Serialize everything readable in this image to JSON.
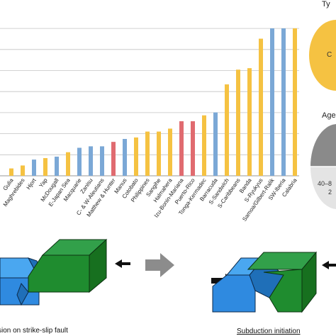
{
  "chart_data": {
    "type": "bar",
    "categories": [
      "Calabria",
      "SW-Iberia",
      "Samoa/Gilbert-Ralik",
      "S-Ryukyus",
      "Banda",
      "S-Caribbeans",
      "S-Sandwich",
      "Barracuda",
      "Tonga-Kermadec",
      "Puerto-Rico",
      "Izu-Bonin-Mariana",
      "Halmahera",
      "Sangihe",
      "Philippines",
      "Cotobato",
      "Manus",
      "Matthew & Hunter",
      "C- & W-Aleutians",
      "Zanisu",
      "Macquarie",
      "E-Japan Sea",
      "McDougall",
      "Yap",
      "Hjort",
      "Maghrebides",
      "Gulia"
    ],
    "values": [
      100,
      100,
      100,
      93,
      73,
      72,
      62,
      43,
      41,
      37,
      37,
      32,
      30,
      30,
      26,
      25,
      23,
      20,
      20,
      19,
      16,
      13,
      12,
      11,
      7,
      5
    ],
    "colors": [
      "#f5c242",
      "#7ba8d6",
      "#7ba8d6",
      "#f5c242",
      "#f5c242",
      "#f5c242",
      "#f5c242",
      "#7ba8d6",
      "#f5c242",
      "#e06b70",
      "#e06b70",
      "#f5c242",
      "#f5c242",
      "#f5c242",
      "#f5c242",
      "#7ba8d6",
      "#e06b70",
      "#7ba8d6",
      "#7ba8d6",
      "#7ba8d6",
      "#f5c242",
      "#7ba8d6",
      "#f5c242",
      "#7ba8d6",
      "#f5c242",
      "#f5c242"
    ],
    "ylim": [
      0,
      100
    ],
    "grid": true,
    "legend": "none"
  },
  "side_panel": {
    "type_title": "Ty",
    "type_pie_label": "C",
    "age_title": "Age",
    "age_pie_label_1": "40–8",
    "age_pie_label_2": "2"
  },
  "diagram": {
    "left_caption": "sion on strike-slip fault",
    "right_caption": "Subduction initiation"
  },
  "colors": {
    "blue_block": "#2f93e8",
    "green_block": "#1f8c2f",
    "arrow_gray": "#8c8c8c",
    "arrow_black": "#111111",
    "yellow": "#f5c242",
    "steel_blue": "#7ba8d6",
    "red": "#e06b70"
  }
}
